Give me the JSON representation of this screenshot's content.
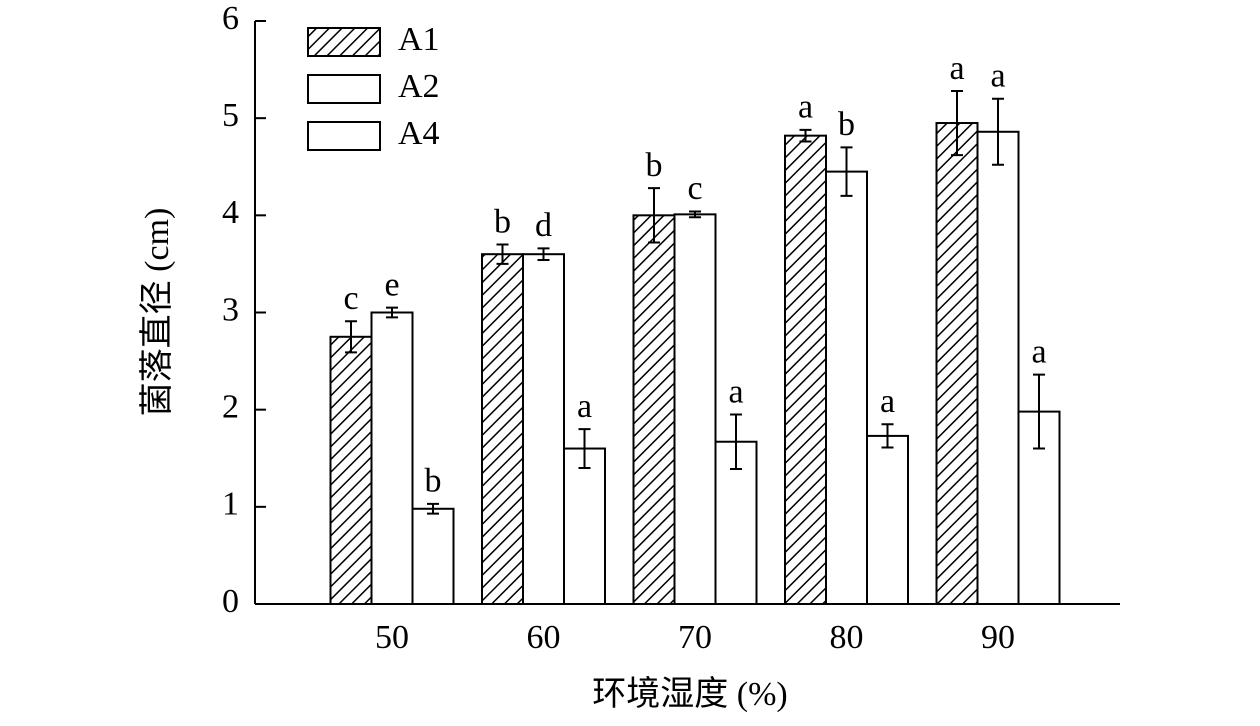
{
  "chart_data": {
    "type": "bar",
    "x_label": "环境湿度 (%)",
    "y_label": "菌落直径 (cm)",
    "categories": [
      "50",
      "60",
      "70",
      "80",
      "90"
    ],
    "ylim": [
      0,
      6
    ],
    "yticks": [
      0,
      1,
      2,
      3,
      4,
      5,
      6
    ],
    "legend": "top-left",
    "series": [
      {
        "name": "A1",
        "color": "#ffffff",
        "hatch": true,
        "values": [
          2.75,
          3.6,
          4.0,
          4.82,
          4.95
        ],
        "errors": [
          0.16,
          0.1,
          0.28,
          0.06,
          0.33
        ],
        "letters": [
          "c",
          "b",
          "b",
          "a",
          "a"
        ]
      },
      {
        "name": "A2",
        "color": "#ffffff",
        "hatch": false,
        "values": [
          3.0,
          3.6,
          4.01,
          4.45,
          4.86
        ],
        "errors": [
          0.05,
          0.06,
          0.03,
          0.25,
          0.34
        ],
        "letters": [
          "e",
          "d",
          "c",
          "b",
          "a"
        ]
      },
      {
        "name": "A4",
        "color": "#ffffff",
        "hatch": false,
        "values": [
          0.98,
          1.6,
          1.67,
          1.73,
          1.98
        ],
        "errors": [
          0.05,
          0.2,
          0.28,
          0.12,
          0.38
        ],
        "letters": [
          "b",
          "a",
          "a",
          "a",
          "a"
        ]
      }
    ]
  }
}
